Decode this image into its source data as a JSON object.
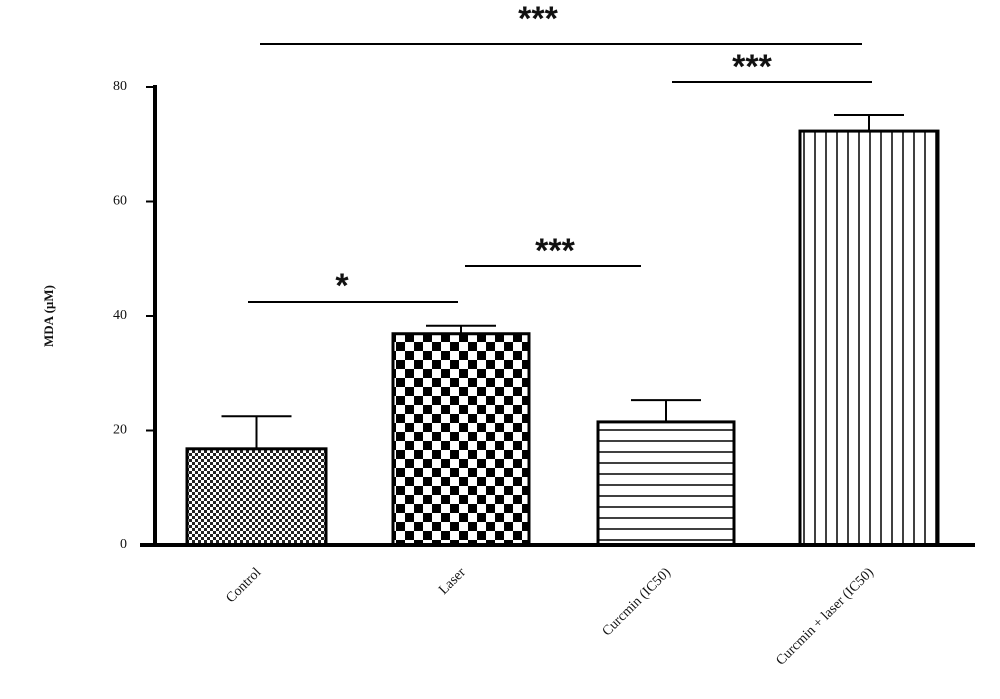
{
  "chart_data": {
    "type": "bar",
    "y_label": "MDA (µM)",
    "categories": [
      "Control",
      "Laser",
      "Curcmin (IC50)",
      "Curcmin + laser (IC50)"
    ],
    "values": [
      16.8,
      36.9,
      21.5,
      72.3
    ],
    "errors": [
      5.7,
      1.4,
      3.8,
      2.8
    ],
    "ylim": [
      0,
      80
    ],
    "yticks": [
      0,
      20,
      40,
      60,
      80
    ],
    "annotations": [
      "***",
      "***",
      "*",
      "***"
    ]
  }
}
